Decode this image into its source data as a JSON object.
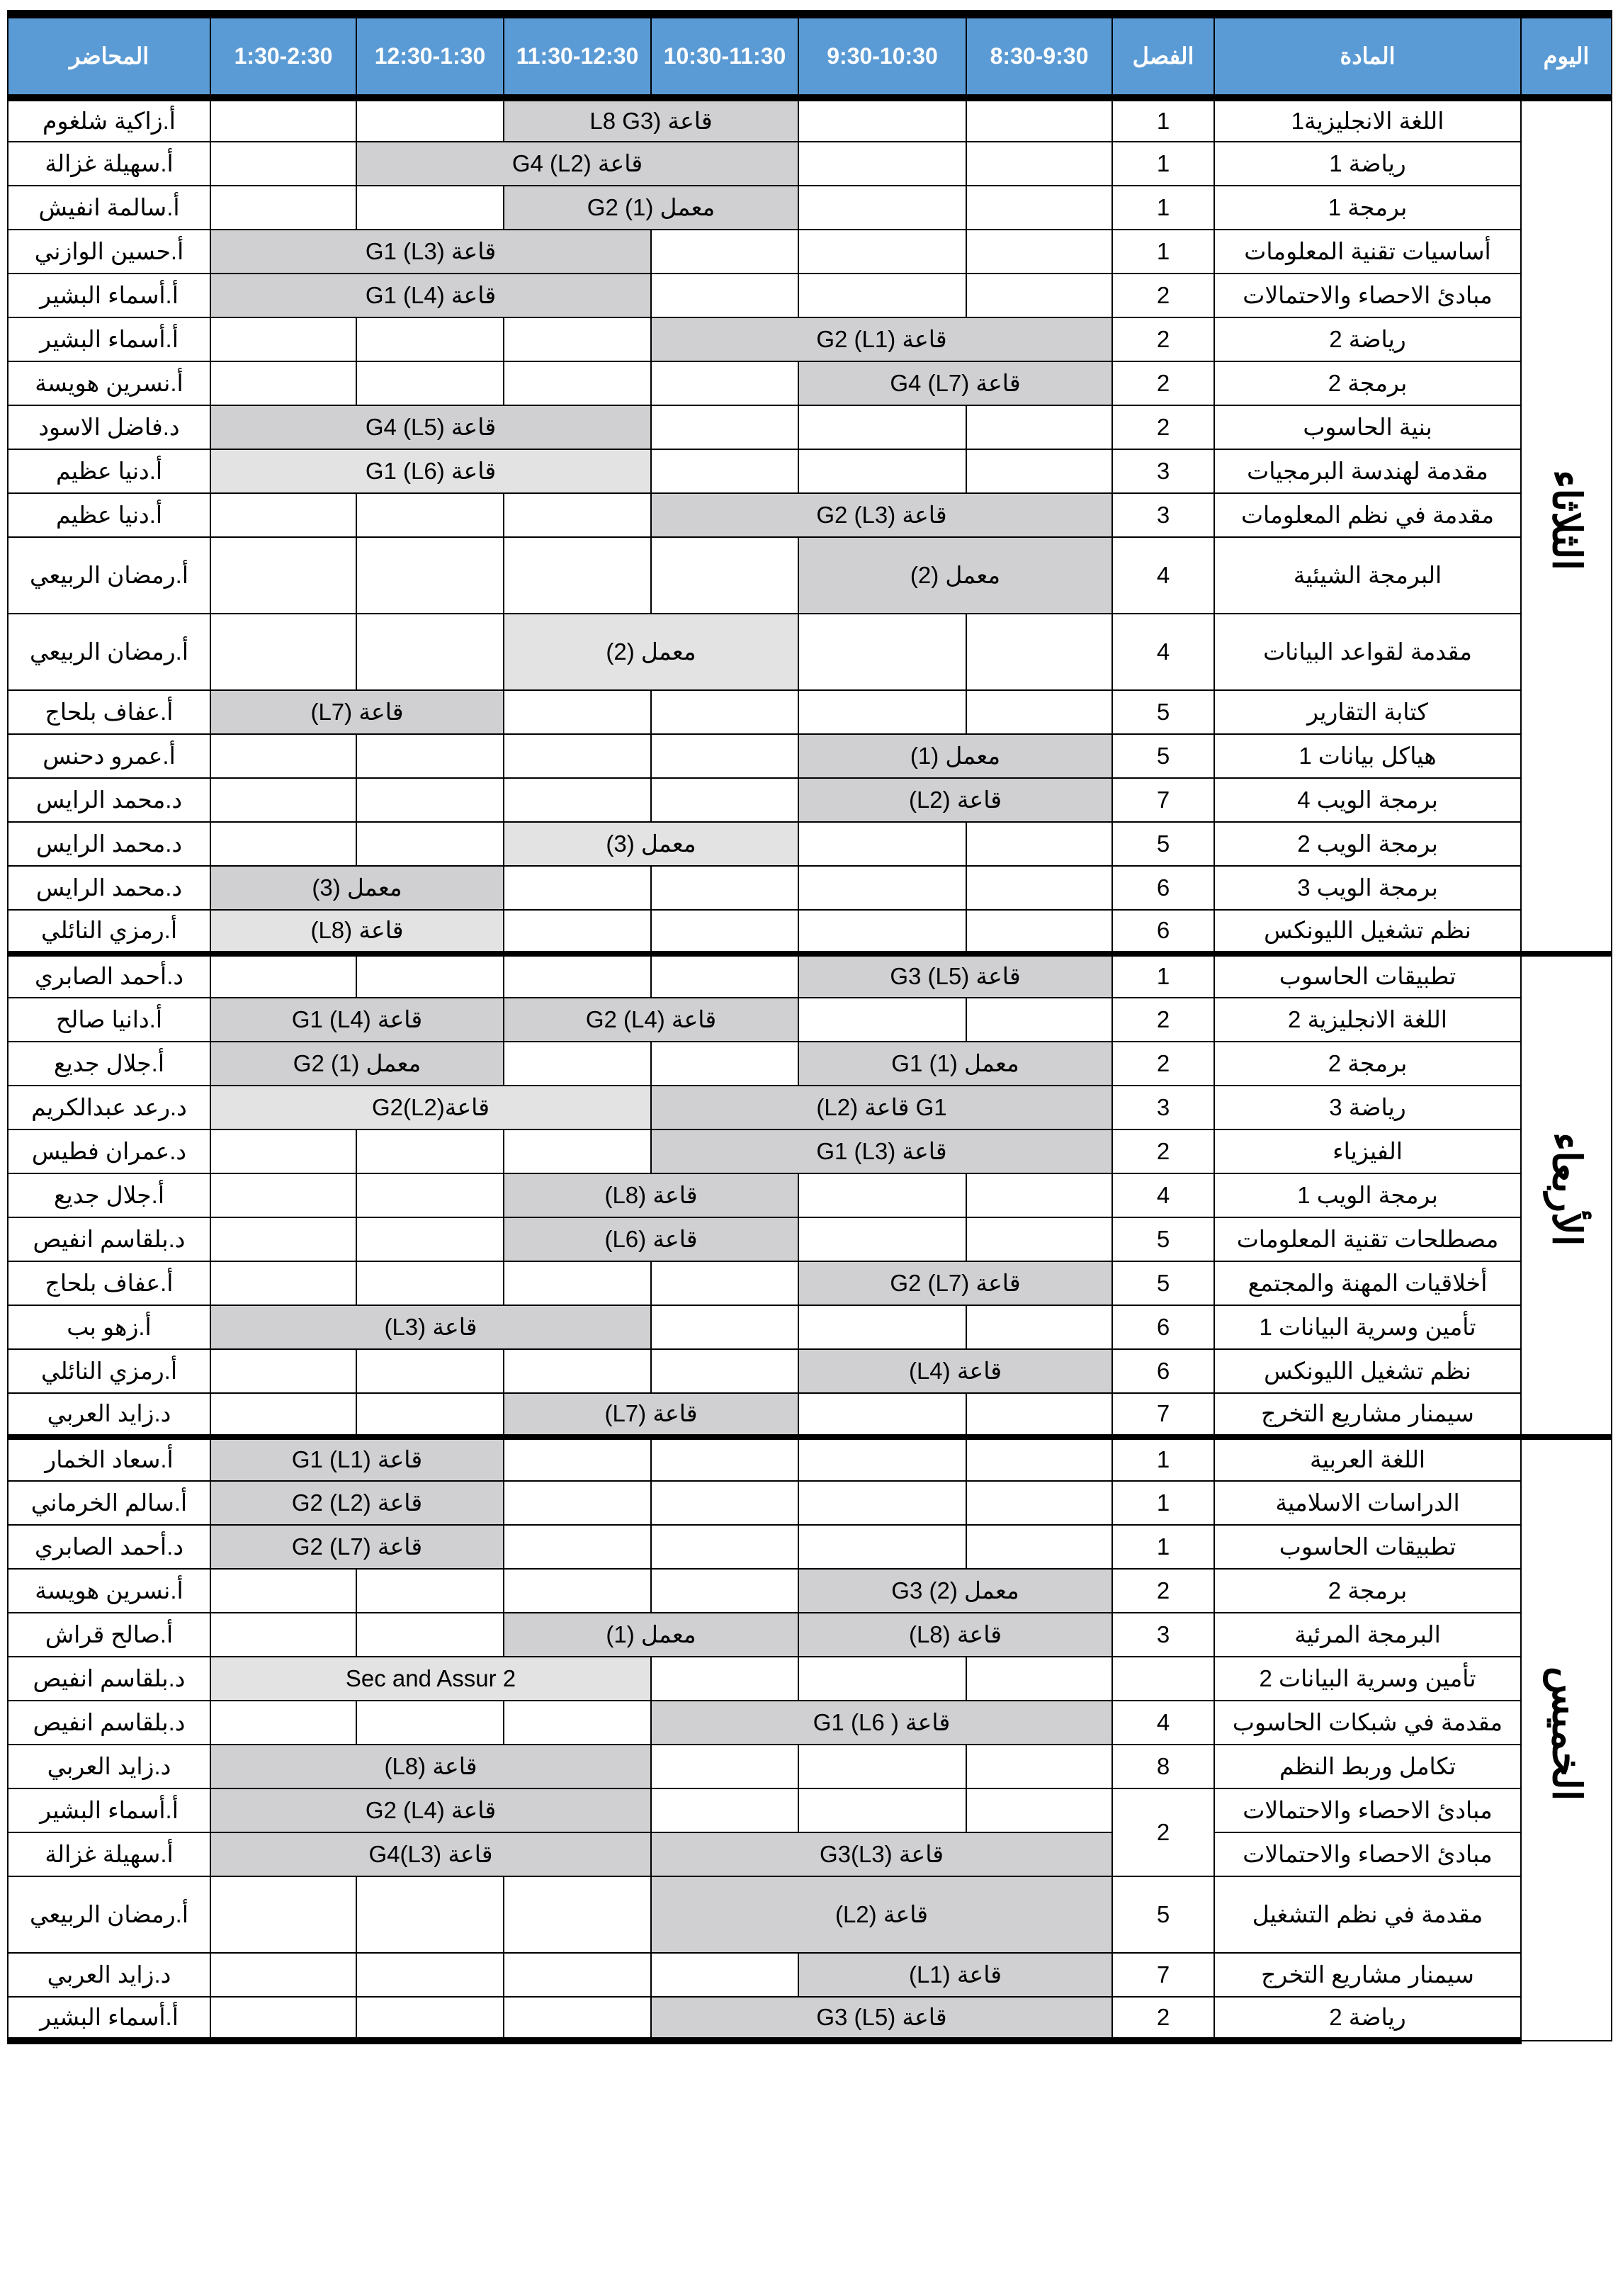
{
  "header": {
    "day": "اليوم",
    "subject": "المادة",
    "semester": "الفصل",
    "slots": [
      "8:30-9:30",
      "9:30-10:30",
      "10:30-11:30",
      "11:30-12:30",
      "12:30-1:30",
      "1:30-2:30"
    ],
    "lecturer": "المحاضر"
  },
  "colors": {
    "header_bg": "#5b9bd5",
    "session_dark": "#d0cfd1",
    "session_light": "#e3e3e3"
  },
  "days": [
    {
      "name": "الثلاثاء",
      "rows": [
        {
          "subject": "اللغة الانجليزية1",
          "sem": "1",
          "lecturer": "أ.زاكية شلغوم",
          "sessions": [
            {
              "start": 2,
              "span": 2,
              "text": "قاعة (L8 G3",
              "shade": "dark"
            }
          ]
        },
        {
          "subject": "رياضة 1",
          "sem": "1",
          "lecturer": "أ.سهيلة غزالة",
          "sessions": [
            {
              "start": 2,
              "span": 3,
              "text": "قاعة (L2) G4",
              "shade": "dark"
            }
          ]
        },
        {
          "subject": "برمجة 1",
          "sem": "1",
          "lecturer": "أ.سالمة انفيش",
          "sessions": [
            {
              "start": 2,
              "span": 2,
              "text": "معمل (1) G2",
              "shade": "dark"
            }
          ]
        },
        {
          "subject": "أساسيات تقنية المعلومات",
          "sem": "1",
          "lecturer": "أ.حسين الوازني",
          "sessions": [
            {
              "start": 3,
              "span": 3,
              "text": "قاعة (L3) G1",
              "shade": "dark"
            }
          ]
        },
        {
          "subject": "مبادئ الاحصاء والاحتمالات",
          "sem": "2",
          "lecturer": "أ.أسماء البشير",
          "sessions": [
            {
              "start": 3,
              "span": 3,
              "text": "قاعة (L4) G1",
              "shade": "dark"
            }
          ]
        },
        {
          "subject": "رياضة 2",
          "sem": "2",
          "lecturer": "أ.أسماء البشير",
          "sessions": [
            {
              "start": 0,
              "span": 3,
              "text": "قاعة (L1) G2",
              "shade": "dark"
            }
          ]
        },
        {
          "subject": "برمجة 2",
          "sem": "2",
          "lecturer": "أ.نسرين هويسة",
          "sessions": [
            {
              "start": 0,
              "span": 2,
              "text": "قاعة (L7) G4",
              "shade": "dark"
            }
          ]
        },
        {
          "subject": "بنية الحاسوب",
          "sem": "2",
          "lecturer": "د.فاضل الاسود",
          "sessions": [
            {
              "start": 3,
              "span": 3,
              "text": "قاعة (L5) G4",
              "shade": "dark"
            }
          ]
        },
        {
          "subject": "مقدمة لهندسة البرمجيات",
          "sem": "3",
          "lecturer": "أ.دنيا عظيم",
          "sessions": [
            {
              "start": 3,
              "span": 3,
              "text": "قاعة (L6) G1",
              "shade": "light"
            }
          ]
        },
        {
          "subject": "مقدمة في نظم المعلومات",
          "sem": "3",
          "lecturer": "أ.دنيا عظيم",
          "sessions": [
            {
              "start": 0,
              "span": 3,
              "text": "قاعة (L3) G2",
              "shade": "dark"
            }
          ]
        },
        {
          "subject": "البرمجة الشيئية",
          "sem": "4",
          "lecturer": "أ.رمضان الربيعي",
          "tall": true,
          "sessions": [
            {
              "start": 0,
              "span": 2,
              "text": "معمل (2)",
              "shade": "dark"
            }
          ]
        },
        {
          "subject": "مقدمة لقواعد البيانات",
          "sem": "4",
          "lecturer": "أ.رمضان الربيعي",
          "tall": true,
          "sessions": [
            {
              "start": 2,
              "span": 2,
              "text": "معمل (2)",
              "shade": "light"
            }
          ]
        },
        {
          "subject": "كتابة التقارير",
          "sem": "5",
          "lecturer": "أ.عفاف بلحاج",
          "sessions": [
            {
              "start": 4,
              "span": 2,
              "text": "قاعة (L7)",
              "shade": "dark"
            }
          ]
        },
        {
          "subject": "هياكل بيانات 1",
          "sem": "5",
          "lecturer": "أ.عمرو دحنس",
          "sessions": [
            {
              "start": 0,
              "span": 2,
              "text": "معمل (1)",
              "shade": "dark"
            }
          ]
        },
        {
          "subject": "برمجة الويب 4",
          "sem": "7",
          "lecturer": "د.محمد الرايس",
          "sessions": [
            {
              "start": 0,
              "span": 2,
              "text": "قاعة (L2)",
              "shade": "dark"
            }
          ]
        },
        {
          "subject": "برمجة الويب 2",
          "sem": "5",
          "lecturer": "د.محمد الرايس",
          "sessions": [
            {
              "start": 2,
              "span": 2,
              "text": "معمل (3)",
              "shade": "light"
            }
          ]
        },
        {
          "subject": "برمجة الويب 3",
          "sem": "6",
          "lecturer": "د.محمد الرايس",
          "sessions": [
            {
              "start": 4,
              "span": 2,
              "text": "معمل (3)",
              "shade": "dark"
            }
          ]
        },
        {
          "subject": "نظم تشغيل الليونكس",
          "sem": "6",
          "lecturer": "أ.رمزي النائلي",
          "sessions": [
            {
              "start": 4,
              "span": 2,
              "text": "قاعة (L8)",
              "shade": "light"
            }
          ]
        }
      ]
    },
    {
      "name": "الأربعاء",
      "rows": [
        {
          "subject": "تطبيقات الحاسوب",
          "sem": "1",
          "lecturer": "د.أحمد الصابري",
          "sessions": [
            {
              "start": 0,
              "span": 2,
              "text": "قاعة (L5) G3",
              "shade": "dark"
            }
          ]
        },
        {
          "subject": "اللغة الانجليزية 2",
          "sem": "2",
          "lecturer": "أ.دانيا صالح",
          "sessions": [
            {
              "start": 2,
              "span": 2,
              "text": "قاعة (L4) G2",
              "shade": "dark"
            },
            {
              "start": 4,
              "span": 2,
              "text": "قاعة (L4) G1",
              "shade": "dark"
            }
          ]
        },
        {
          "subject": "برمجة 2",
          "sem": "2",
          "lecturer": "أ.جلال جديع",
          "sessions": [
            {
              "start": 0,
              "span": 2,
              "text": "معمل (1) G1",
              "shade": "dark"
            },
            {
              "start": 4,
              "span": 2,
              "text": "معمل (1) G2",
              "shade": "dark"
            }
          ]
        },
        {
          "subject": "رياضة 3",
          "sem": "3",
          "lecturer": "د.رعد عبدالكريم",
          "sessions": [
            {
              "start": 0,
              "span": 3,
              "text": "G1 قاعة (L2)",
              "shade": "dark"
            },
            {
              "start": 3,
              "span": 3,
              "text": "قاعة(L2)G2",
              "shade": "light"
            }
          ]
        },
        {
          "subject": "الفيزياء",
          "sem": "2",
          "lecturer": "د.عمران فطيس",
          "sessions": [
            {
              "start": 0,
              "span": 3,
              "text": "قاعة (L3) G1",
              "shade": "dark"
            }
          ]
        },
        {
          "subject": "برمجة الويب 1",
          "sem": "4",
          "lecturer": "أ.جلال جديع",
          "sessions": [
            {
              "start": 2,
              "span": 2,
              "text": "قاعة (L8)",
              "shade": "dark"
            }
          ]
        },
        {
          "subject": "مصطلحات تقنية المعلومات",
          "sem": "5",
          "lecturer": "د.بلقاسم انفيص",
          "sessions": [
            {
              "start": 2,
              "span": 2,
              "text": "قاعة (L6)",
              "shade": "dark"
            }
          ]
        },
        {
          "subject": "أخلاقيات المهنة والمجتمع",
          "sem": "5",
          "lecturer": "أ.عفاف بلحاج",
          "sessions": [
            {
              "start": 0,
              "span": 2,
              "text": "قاعة (L7) G2",
              "shade": "dark"
            }
          ]
        },
        {
          "subject": "تأمين وسرية البيانات 1",
          "sem": "6",
          "lecturer": "أ.زهو بب",
          "sessions": [
            {
              "start": 3,
              "span": 3,
              "text": "قاعة (L3)",
              "shade": "dark"
            }
          ]
        },
        {
          "subject": "نظم تشغيل الليونكس",
          "sem": "6",
          "lecturer": "أ.رمزي النائلي",
          "sessions": [
            {
              "start": 0,
              "span": 2,
              "text": "قاعة (L4)",
              "shade": "dark"
            }
          ]
        },
        {
          "subject": "سيمنار مشاريع التخرج",
          "sem": "7",
          "lecturer": "د.زايد العربي",
          "sessions": [
            {
              "start": 2,
              "span": 2,
              "text": "قاعة (L7)",
              "shade": "dark"
            }
          ]
        }
      ]
    },
    {
      "name": "الخميس",
      "rows": [
        {
          "subject": "اللغة العربية",
          "sem": "1",
          "lecturer": "أ.سعاد الخمار",
          "sessions": [
            {
              "start": 4,
              "span": 2,
              "text": "قاعة (L1) G1",
              "shade": "dark"
            }
          ]
        },
        {
          "subject": "الدراسات الاسلامية",
          "sem": "1",
          "lecturer": "أ.سالم الخرماني",
          "sessions": [
            {
              "start": 4,
              "span": 2,
              "text": "قاعة (L2) G2",
              "shade": "dark"
            }
          ]
        },
        {
          "subject": "تطبيقات الحاسوب",
          "sem": "1",
          "lecturer": "د.أحمد الصابري",
          "sessions": [
            {
              "start": 4,
              "span": 2,
              "text": "قاعة (L7) G2",
              "shade": "dark"
            }
          ]
        },
        {
          "subject": "برمجة 2",
          "sem": "2",
          "lecturer": "أ.نسرين هويسة",
          "sessions": [
            {
              "start": 0,
              "span": 2,
              "text": "معمل (2) G3",
              "shade": "dark"
            }
          ]
        },
        {
          "subject": "البرمجة المرئية",
          "sem": "3",
          "lecturer": "أ.صالح قراش",
          "sessions": [
            {
              "start": 0,
              "span": 2,
              "text": "قاعة (L8)",
              "shade": "dark"
            },
            {
              "start": 2,
              "span": 2,
              "text": "معمل (1)",
              "shade": "dark"
            }
          ]
        },
        {
          "subject": "تأمين وسرية البيانات 2",
          "sem": "",
          "lecturer": "د.بلقاسم انفيص",
          "sessions": [
            {
              "start": 3,
              "span": 3,
              "text": "Sec and Assur 2",
              "shade": "light"
            }
          ]
        },
        {
          "subject": "مقدمة في شبكات الحاسوب",
          "sem": "4",
          "lecturer": "د.بلقاسم انفيص",
          "sessions": [
            {
              "start": 0,
              "span": 3,
              "text": "قاعة ( L6) G1",
              "shade": "dark"
            }
          ]
        },
        {
          "subject": "تكامل وربط النظم",
          "sem": "8",
          "lecturer": "د.زايد العربي",
          "sessions": [
            {
              "start": 3,
              "span": 3,
              "text": "قاعة (L8)",
              "shade": "dark"
            }
          ]
        },
        {
          "subject": "مبادئ الاحصاء والاحتمالات",
          "sem": "2",
          "sem_rows": 2,
          "lecturer": "أ.أسماء البشير",
          "sessions": [
            {
              "start": 3,
              "span": 3,
              "text": "قاعة (L4) G2",
              "shade": "dark"
            }
          ]
        },
        {
          "subject": "مبادئ الاحصاء والاحتمالات",
          "sem": null,
          "lecturer": "أ.سهيلة غزالة",
          "sessions": [
            {
              "start": 0,
              "span": 3,
              "text": "قاعة G3(L3)",
              "shade": "dark"
            },
            {
              "start": 3,
              "span": 3,
              "text": "قاعة G4(L3)",
              "shade": "dark"
            }
          ]
        },
        {
          "subject": "مقدمة في نظم التشغيل",
          "sem": "5",
          "lecturer": "أ.رمضان الربيعي",
          "tall": true,
          "sessions": [
            {
              "start": 0,
              "span": 3,
              "text": "قاعة (L2)",
              "shade": "dark"
            }
          ]
        },
        {
          "subject": "سيمنار مشاريع التخرج",
          "sem": "7",
          "lecturer": "د.زايد العربي",
          "sessions": [
            {
              "start": 0,
              "span": 2,
              "text": "قاعة (L1)",
              "shade": "dark"
            }
          ]
        },
        {
          "subject": "رياضة 2",
          "sem": "2",
          "lecturer": "أ.أسماء البشير",
          "sessions": [
            {
              "start": 0,
              "span": 3,
              "text": "قاعة (L5) G3",
              "shade": "dark"
            }
          ]
        }
      ]
    }
  ]
}
